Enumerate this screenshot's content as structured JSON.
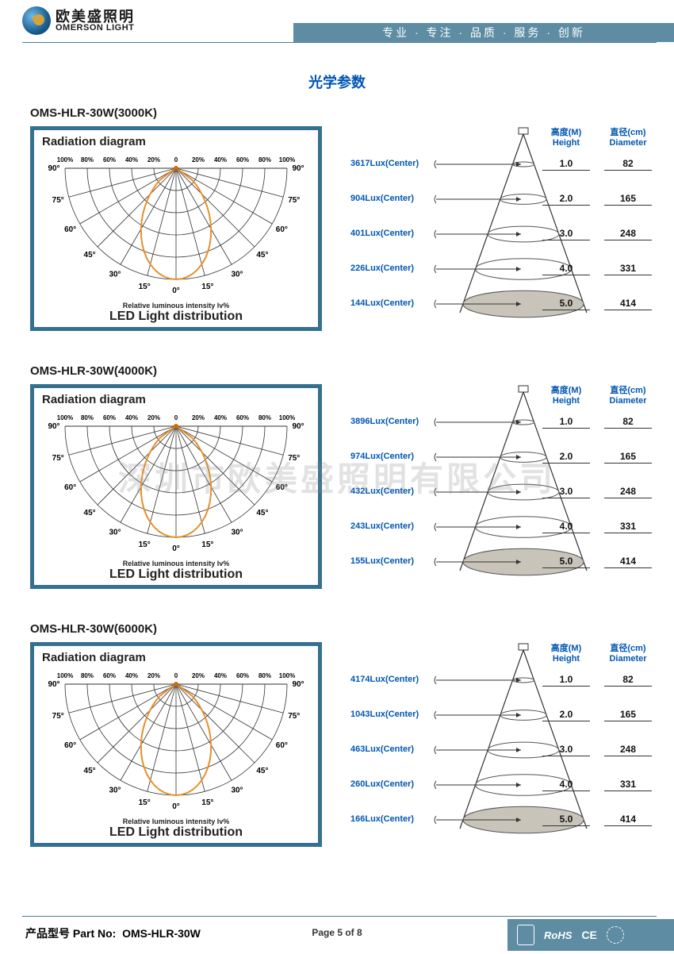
{
  "header": {
    "logo_cn": "欧美盛照明",
    "logo_en": "OMERSON LIGHT",
    "tagline": "专业 · 专注 · 品质 · 服务 · 创新"
  },
  "page_title": "光学参数",
  "watermark": "深圳市欧美盛照明有限公司",
  "radiation_box": {
    "title": "Radiation diagram",
    "subtitle": "Relative luminous intensity lv%",
    "bigtitle": "LED Light distribution",
    "pct_labels": [
      "100%",
      "80%",
      "60%",
      "40%",
      "20%",
      "0",
      "20%",
      "40%",
      "60%",
      "80%",
      "100%"
    ],
    "angles": [
      90,
      75,
      60,
      45,
      30,
      15,
      0
    ],
    "curve_color": "#e8902a",
    "grid_color": "#333333"
  },
  "cone_common": {
    "header_height_cn": "高度(M)",
    "header_height_en": "Height",
    "header_dia_cn": "直径(cm)",
    "header_dia_en": "Diameter",
    "heights": [
      "1.0",
      "2.0",
      "3.0",
      "4.0",
      "5.0"
    ],
    "diameters": [
      "82",
      "165",
      "248",
      "331",
      "414"
    ],
    "lux_suffix": "Lux(Center)",
    "line_color": "#555555",
    "tri_color": "#333333",
    "ellipse_fill": "#c9c4ba"
  },
  "sections": [
    {
      "title": "OMS-HLR-30W(3000K)",
      "lux": [
        "3617",
        "904",
        "401",
        "226",
        "144"
      ]
    },
    {
      "title": "OMS-HLR-30W(4000K)",
      "lux": [
        "3896",
        "974",
        "432",
        "243",
        "155"
      ]
    },
    {
      "title": "OMS-HLR-30W(6000K)",
      "lux": [
        "4174",
        "1043",
        "463",
        "260",
        "166"
      ]
    }
  ],
  "footer": {
    "part_label_cn": "产品型号",
    "part_label_en": "Part No:",
    "part_no": "OMS-HLR-30W",
    "page_info": "Page 5 of 8",
    "rohs": "RoHS",
    "ce": "CE"
  }
}
